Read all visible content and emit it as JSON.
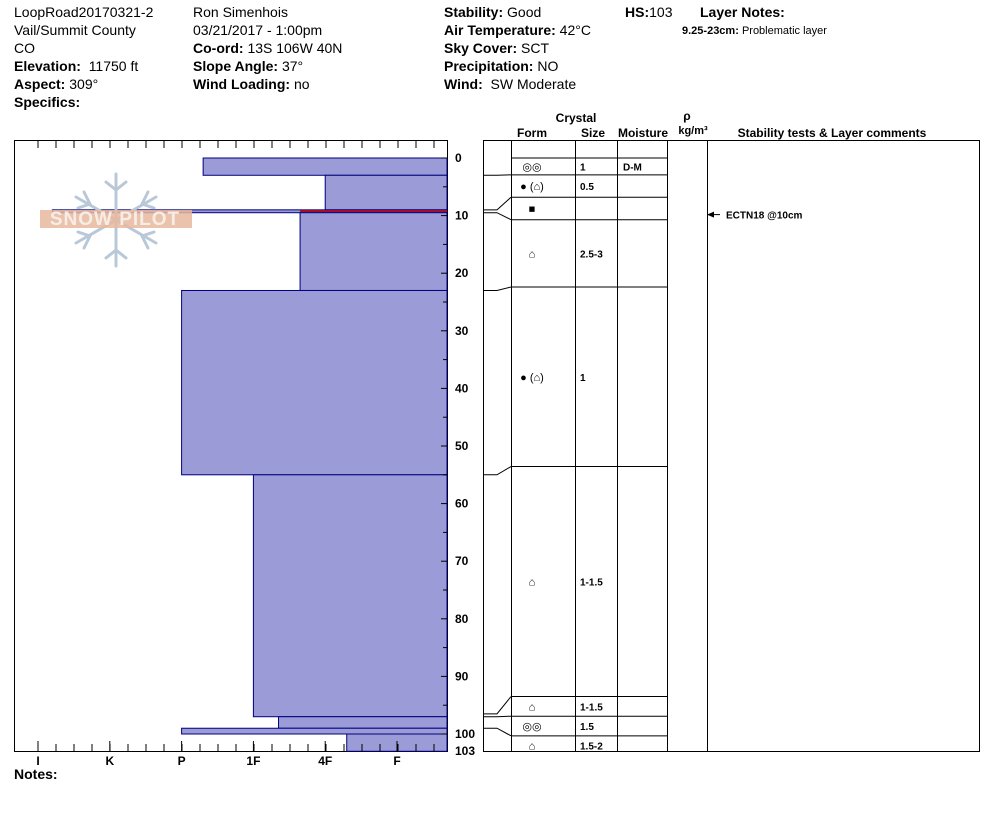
{
  "header": {
    "col1": {
      "site_id": "LoopRoad20170321-2",
      "location": "Vail/Summit County",
      "state": "CO",
      "elevation_label": "Elevation:",
      "elevation_value": "11750 ft",
      "aspect_label": "Aspect:",
      "aspect_value": "309°",
      "specifics_label": "Specifics:"
    },
    "col2": {
      "observer": "Ron Simenhois",
      "datetime": "03/21/2017 - 1:00pm",
      "coord_label": "Co-ord:",
      "coord_value": "13S 106W 40N",
      "slope_label": "Slope Angle:",
      "slope_value": "37°",
      "wind_loading_label": "Wind Loading:",
      "wind_loading_value": "no"
    },
    "col3": {
      "stability_label": "Stability:",
      "stability_value": "Good",
      "air_temp_label": "Air Temperature:",
      "air_temp_value": "42°C",
      "sky_label": "Sky Cover:",
      "sky_value": "SCT",
      "precip_label": "Precipitation:",
      "precip_value": "NO",
      "wind_label": "Wind:",
      "wind_value": "SW Moderate"
    },
    "hs_label": "HS:",
    "hs_value": "103",
    "layer_notes_label": "Layer Notes:",
    "layer_note_range": "9.25-23cm:",
    "layer_note_text": "Problematic layer"
  },
  "logo_text": "SNOW PILOT",
  "notes_label": "Notes:",
  "table_headers": {
    "crystal": "Crystal",
    "form": "Form",
    "size": "Size",
    "moisture": "Moisture",
    "rho": "ρ",
    "density_unit": "kg/m³",
    "comments": "Stability tests & Layer comments"
  },
  "colors": {
    "hardness_fill": "#9b9bd7",
    "hardness_stroke": "#00007f",
    "weak_layer_line": "#cc0000"
  },
  "chart_data": {
    "type": "bar",
    "description_axis": "hardness profile (horizontal bars) vs depth",
    "xlabel": "",
    "ylabel": "",
    "x_ticks": [
      "I",
      "K",
      "P",
      "1F",
      "4F",
      "F"
    ],
    "y_ticks": [
      0,
      10,
      20,
      30,
      40,
      50,
      60,
      70,
      80,
      90,
      100
    ],
    "y_extra_label": "103",
    "ylim": [
      0,
      103
    ],
    "hardness_scale": {
      "F": 1,
      "4F": 2,
      "1F": 3,
      "P": 4,
      "K": 5,
      "I": 6
    },
    "layers": [
      {
        "top": 0,
        "bottom": 3,
        "hardness": 3.7
      },
      {
        "top": 3,
        "bottom": 9,
        "hardness": 2.0
      },
      {
        "top": 9,
        "bottom": 9.5,
        "hardness": 5.8
      },
      {
        "top": 9.5,
        "bottom": 23,
        "hardness": 2.35
      },
      {
        "top": 23,
        "bottom": 55,
        "hardness": 4.0
      },
      {
        "top": 55,
        "bottom": 97,
        "hardness": 3.0
      },
      {
        "top": 97,
        "bottom": 99,
        "hardness": 2.65
      },
      {
        "top": 99,
        "bottom": 100,
        "hardness": 4.0
      },
      {
        "top": 100,
        "bottom": 103,
        "hardness": 1.7
      }
    ],
    "weak_layer_depth": 9.25
  },
  "layer_table": [
    {
      "top": 0,
      "bottom": 3,
      "form": "◎◎",
      "size": "1",
      "moisture": "D-M"
    },
    {
      "top": 3,
      "bottom": 7,
      "form": "● (⌂)",
      "size": "0.5",
      "moisture": ""
    },
    {
      "top": 7,
      "bottom": 11,
      "form": "■",
      "size": "",
      "moisture": ""
    },
    {
      "top": 11,
      "bottom": 23,
      "form": "⌂",
      "size": "2.5-3",
      "moisture": ""
    },
    {
      "top": 23,
      "bottom": 55,
      "form": "● (⌂)",
      "size": "1",
      "moisture": ""
    },
    {
      "top": 55,
      "bottom": 96,
      "form": "⌂",
      "size": "1-1.5",
      "moisture": ""
    },
    {
      "top": 96,
      "bottom": 99.5,
      "form": "⌂",
      "size": "1-1.5",
      "moisture": ""
    },
    {
      "top": 99.5,
      "bottom": 103,
      "form": "◎◎",
      "size": "1.5",
      "moisture": ""
    },
    {
      "top": 103,
      "bottom": 106.5,
      "form": "⌂",
      "size": "1.5-2",
      "moisture": ""
    }
  ],
  "stability_tests": [
    {
      "depth": 10,
      "label": "ECTN18 @10cm"
    }
  ]
}
